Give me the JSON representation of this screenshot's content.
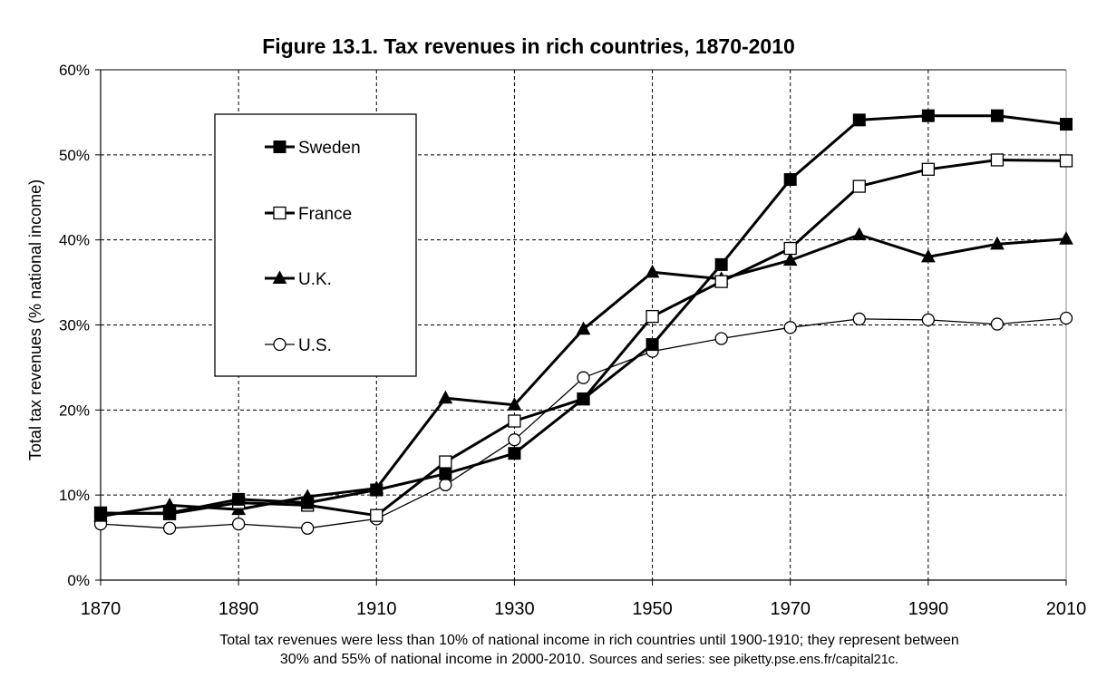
{
  "chart_data": {
    "type": "line",
    "title": "Figure 13.1. Tax revenues in rich countries, 1870-2010",
    "ylabel": "Total tax revenues (% national income)",
    "xlabel": "",
    "x": [
      1870,
      1880,
      1890,
      1900,
      1910,
      1920,
      1930,
      1940,
      1950,
      1960,
      1970,
      1980,
      1990,
      2000,
      2010
    ],
    "xlim": [
      1870,
      2010
    ],
    "ylim": [
      0,
      60
    ],
    "x_tick_labels": [
      "1870",
      "1890",
      "1910",
      "1930",
      "1950",
      "1970",
      "1990",
      "2010"
    ],
    "y_tick_labels": [
      "0%",
      "10%",
      "20%",
      "30%",
      "40%",
      "50%",
      "60%"
    ],
    "grid": true,
    "legend_position": "upper-left",
    "series": [
      {
        "name": "Sweden",
        "marker": "filled-square",
        "line_width": "thick",
        "values": [
          7.8,
          7.9,
          9.5,
          9.1,
          10.6,
          12.5,
          14.9,
          21.3,
          27.7,
          37.1,
          47.1,
          54.1,
          54.6,
          54.6,
          53.6
        ]
      },
      {
        "name": "France",
        "marker": "open-square",
        "line_width": "thick",
        "values": [
          7.9,
          7.8,
          9.1,
          8.8,
          7.6,
          13.9,
          18.7,
          21.3,
          31.0,
          35.1,
          39.0,
          46.3,
          48.3,
          49.4,
          49.3
        ]
      },
      {
        "name": "U.K.",
        "marker": "filled-triangle",
        "line_width": "thick",
        "values": [
          7.5,
          8.8,
          8.3,
          9.8,
          10.8,
          21.4,
          20.6,
          29.5,
          36.2,
          35.4,
          37.6,
          40.6,
          38.0,
          39.5,
          40.1
        ]
      },
      {
        "name": "U.S.",
        "marker": "open-circle",
        "line_width": "thin",
        "values": [
          6.6,
          6.1,
          6.6,
          6.1,
          7.2,
          11.2,
          16.5,
          23.8,
          26.9,
          28.4,
          29.7,
          30.7,
          30.6,
          30.1,
          30.8
        ]
      }
    ]
  },
  "caption": {
    "line1": "Total tax revenues were less than 10% of national income in rich countries until 1900-1910; they represent between",
    "line2_main": "30% and 55% of national income in 2000-2010.",
    "line2_source": "Sources and series: see piketty.pse.ens.fr/capital21c."
  },
  "colors": {
    "line": "#000000",
    "grid": "#000000",
    "background": "#ffffff"
  }
}
